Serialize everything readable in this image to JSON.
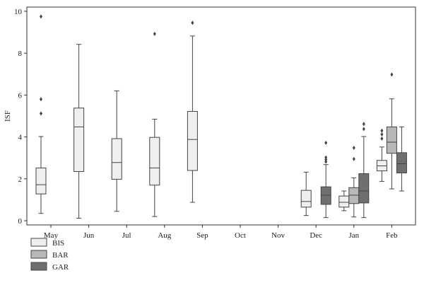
{
  "chart_data": {
    "type": "box",
    "ylabel": "ISF",
    "xlabel": "",
    "ylim": [
      -0.2,
      10.2
    ],
    "yticks": [
      0,
      2,
      4,
      6,
      8,
      10
    ],
    "categories": [
      "May",
      "Jun",
      "Jul",
      "Aug",
      "Sep",
      "Oct",
      "Nov",
      "Dec",
      "Jan",
      "Feb"
    ],
    "legend_position": "bottom-left",
    "series": [
      {
        "name": "BIS",
        "color": "#efefef",
        "boxes": [
          {
            "category": "May",
            "whisker_low": 0.35,
            "q1": 1.28,
            "median": 1.72,
            "q3": 2.52,
            "whisker_high": 4.02,
            "outliers": [
              5.12,
              5.8,
              9.75
            ]
          },
          {
            "category": "Jun",
            "whisker_low": 0.12,
            "q1": 2.35,
            "median": 4.48,
            "q3": 5.38,
            "whisker_high": 8.42,
            "outliers": []
          },
          {
            "category": "Jul",
            "whisker_low": 0.45,
            "q1": 1.98,
            "median": 2.78,
            "q3": 3.92,
            "whisker_high": 6.2,
            "outliers": []
          },
          {
            "category": "Aug",
            "whisker_low": 0.2,
            "q1": 1.7,
            "median": 2.52,
            "q3": 3.98,
            "whisker_high": 4.85,
            "outliers": [
              8.92
            ]
          },
          {
            "category": "Sep",
            "whisker_low": 0.88,
            "q1": 2.4,
            "median": 3.88,
            "q3": 5.22,
            "whisker_high": 8.82,
            "outliers": [
              9.45
            ]
          },
          {
            "category": "Dec",
            "whisker_low": 0.25,
            "q1": 0.65,
            "median": 0.92,
            "q3": 1.45,
            "whisker_high": 2.32,
            "outliers": []
          },
          {
            "category": "Jan",
            "whisker_low": 0.48,
            "q1": 0.65,
            "median": 0.88,
            "q3": 1.18,
            "whisker_high": 1.42,
            "outliers": []
          },
          {
            "category": "Feb",
            "whisker_low": 1.88,
            "q1": 2.38,
            "median": 2.62,
            "q3": 2.88,
            "whisker_high": 3.52,
            "outliers": [
              3.92,
              4.12,
              4.3
            ]
          }
        ]
      },
      {
        "name": "BAR",
        "color": "#b8b8b8",
        "boxes": [
          {
            "category": "Jan",
            "whisker_low": 0.18,
            "q1": 0.82,
            "median": 1.22,
            "q3": 1.58,
            "whisker_high": 2.05,
            "outliers": [
              2.95,
              3.48
            ]
          },
          {
            "category": "Feb",
            "whisker_low": 1.52,
            "q1": 3.22,
            "median": 3.75,
            "q3": 4.48,
            "whisker_high": 5.82,
            "outliers": [
              6.98
            ]
          }
        ]
      },
      {
        "name": "GAR",
        "color": "#6f6f6f",
        "boxes": [
          {
            "category": "Dec",
            "whisker_low": 0.15,
            "q1": 0.78,
            "median": 1.22,
            "q3": 1.62,
            "whisker_high": 2.68,
            "outliers": [
              2.82,
              2.92,
              3.02,
              3.72
            ]
          },
          {
            "category": "Jan",
            "whisker_low": 0.15,
            "q1": 0.85,
            "median": 1.42,
            "q3": 2.25,
            "whisker_high": 4.02,
            "outliers": [
              4.38,
              4.62
            ]
          },
          {
            "category": "Feb",
            "whisker_low": 1.42,
            "q1": 2.28,
            "median": 2.72,
            "q3": 3.25,
            "whisker_high": 4.48,
            "outliers": []
          }
        ]
      }
    ]
  }
}
